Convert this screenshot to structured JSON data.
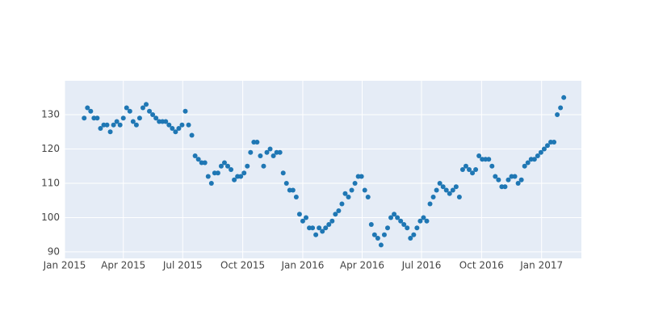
{
  "chart_data": {
    "type": "scatter",
    "color": "#1f77b4",
    "grid": true,
    "xlim": [
      "2015-01-01",
      "2017-03-03"
    ],
    "ylim": [
      88.1,
      139.9
    ],
    "yticks": [
      90,
      100,
      110,
      120,
      130
    ],
    "xticks": [
      {
        "value": "2015-01-01",
        "label": "Jan 2015"
      },
      {
        "value": "2015-04-01",
        "label": "Apr 2015"
      },
      {
        "value": "2015-07-01",
        "label": "Jul 2015"
      },
      {
        "value": "2015-10-01",
        "label": "Oct 2015"
      },
      {
        "value": "2016-01-01",
        "label": "Jan 2016"
      },
      {
        "value": "2016-04-01",
        "label": "Apr 2016"
      },
      {
        "value": "2016-07-01",
        "label": "Jul 2016"
      },
      {
        "value": "2016-10-01",
        "label": "Oct 2016"
      },
      {
        "value": "2017-01-01",
        "label": "Jan 2017"
      }
    ],
    "x": [
      "2015-01-31",
      "2015-02-05",
      "2015-02-10",
      "2015-02-15",
      "2015-02-20",
      "2015-02-25",
      "2015-03-02",
      "2015-03-07",
      "2015-03-12",
      "2015-03-17",
      "2015-03-22",
      "2015-03-27",
      "2015-04-01",
      "2015-04-06",
      "2015-04-11",
      "2015-04-16",
      "2015-04-21",
      "2015-04-26",
      "2015-05-01",
      "2015-05-06",
      "2015-05-11",
      "2015-05-16",
      "2015-05-21",
      "2015-05-26",
      "2015-05-31",
      "2015-06-05",
      "2015-06-10",
      "2015-06-15",
      "2015-06-20",
      "2015-06-25",
      "2015-06-30",
      "2015-07-05",
      "2015-07-10",
      "2015-07-15",
      "2015-07-20",
      "2015-07-25",
      "2015-07-30",
      "2015-08-04",
      "2015-08-09",
      "2015-08-14",
      "2015-08-19",
      "2015-08-24",
      "2015-08-29",
      "2015-09-03",
      "2015-09-08",
      "2015-09-13",
      "2015-09-18",
      "2015-09-23",
      "2015-09-28",
      "2015-10-03",
      "2015-10-08",
      "2015-10-13",
      "2015-10-18",
      "2015-10-23",
      "2015-10-28",
      "2015-11-02",
      "2015-11-07",
      "2015-11-12",
      "2015-11-17",
      "2015-11-22",
      "2015-11-27",
      "2015-12-02",
      "2015-12-07",
      "2015-12-12",
      "2015-12-17",
      "2015-12-22",
      "2015-12-27",
      "2016-01-01",
      "2016-01-06",
      "2016-01-11",
      "2016-01-16",
      "2016-01-21",
      "2016-01-26",
      "2016-01-31",
      "2016-02-05",
      "2016-02-10",
      "2016-02-15",
      "2016-02-20",
      "2016-02-25",
      "2016-03-01",
      "2016-03-06",
      "2016-03-11",
      "2016-03-16",
      "2016-03-21",
      "2016-03-26",
      "2016-03-31",
      "2016-04-05",
      "2016-04-10",
      "2016-04-15",
      "2016-04-20",
      "2016-04-25",
      "2016-04-30",
      "2016-05-05",
      "2016-05-10",
      "2016-05-15",
      "2016-05-20",
      "2016-05-25",
      "2016-05-30",
      "2016-06-04",
      "2016-06-09",
      "2016-06-14",
      "2016-06-19",
      "2016-06-24",
      "2016-06-29",
      "2016-07-04",
      "2016-07-09",
      "2016-07-14",
      "2016-07-19",
      "2016-07-24",
      "2016-07-29",
      "2016-08-03",
      "2016-08-08",
      "2016-08-13",
      "2016-08-18",
      "2016-08-23",
      "2016-08-28",
      "2016-09-02",
      "2016-09-07",
      "2016-09-12",
      "2016-09-17",
      "2016-09-22",
      "2016-09-27",
      "2016-10-02",
      "2016-10-07",
      "2016-10-12",
      "2016-10-17",
      "2016-10-22",
      "2016-10-27",
      "2016-11-01",
      "2016-11-06",
      "2016-11-11",
      "2016-11-16",
      "2016-11-21",
      "2016-11-26",
      "2016-12-01",
      "2016-12-06",
      "2016-12-11",
      "2016-12-16",
      "2016-12-21",
      "2016-12-26",
      "2016-12-31",
      "2017-01-05",
      "2017-01-10",
      "2017-01-15",
      "2017-01-20",
      "2017-01-25",
      "2017-01-30",
      "2017-02-04"
    ],
    "values": [
      129,
      132,
      131,
      129,
      129,
      126,
      127,
      127,
      125,
      127,
      128,
      127,
      129,
      132,
      131,
      128,
      127,
      129,
      132,
      133,
      131,
      130,
      129,
      128,
      128,
      128,
      127,
      126,
      125,
      126,
      127,
      131,
      127,
      124,
      118,
      117,
      116,
      116,
      112,
      110,
      113,
      113,
      115,
      116,
      115,
      114,
      111,
      112,
      112,
      113,
      115,
      119,
      122,
      122,
      118,
      115,
      119,
      120,
      118,
      119,
      119,
      113,
      110,
      108,
      108,
      106,
      101,
      99,
      100,
      97,
      97,
      95,
      97,
      96,
      97,
      98,
      99,
      101,
      102,
      104,
      107,
      106,
      108,
      110,
      112,
      112,
      108,
      106,
      98,
      95,
      94,
      92,
      95,
      97,
      100,
      101,
      100,
      99,
      98,
      97,
      94,
      95,
      97,
      99,
      100,
      99,
      104,
      106,
      108,
      110,
      109,
      108,
      107,
      108,
      109,
      106,
      114,
      115,
      114,
      113,
      114,
      118,
      117,
      117,
      117,
      115,
      112,
      111,
      109,
      109,
      111,
      112,
      112,
      110,
      111,
      115,
      116,
      117,
      117,
      118,
      119,
      120,
      121,
      122,
      122,
      130,
      132,
      135
    ]
  }
}
